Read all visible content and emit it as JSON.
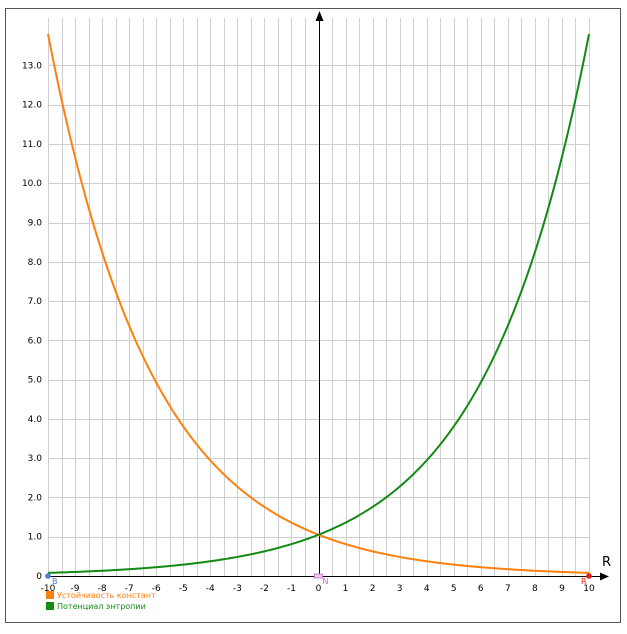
{
  "chart_data": {
    "type": "line",
    "xlabel": "R",
    "ylabel": "",
    "xlim": [
      -10,
      10
    ],
    "ylim": [
      0,
      13.8
    ],
    "grid": true,
    "x_ticks": [
      "-10",
      "-9",
      "-8",
      "-7",
      "-6",
      "-5",
      "-4",
      "-3",
      "-2",
      "-1",
      "0",
      "1",
      "2",
      "3",
      "4",
      "5",
      "6",
      "7",
      "8",
      "9",
      "10"
    ],
    "y_ticks": [
      "0",
      "1.0",
      "2.0",
      "3.0",
      "4.0",
      "5.0",
      "6.0",
      "7.0",
      "8.0",
      "9.0",
      "10.0",
      "11.0",
      "12.0",
      "13.0"
    ],
    "series": [
      {
        "name": "Устойчивость констант",
        "color": "#ff7f0e",
        "x": [
          -10,
          -9,
          -8,
          -7,
          -6,
          -5,
          -4,
          -3,
          -2,
          -1,
          0,
          1,
          2,
          3,
          4,
          5,
          6,
          7,
          8,
          9,
          10
        ],
        "y": [
          13.8,
          10.66,
          8.22,
          6.36,
          4.92,
          3.8,
          2.93,
          2.27,
          1.75,
          1.35,
          1.04,
          0.81,
          0.62,
          0.48,
          0.37,
          0.29,
          0.22,
          0.17,
          0.13,
          0.1,
          0.08
        ]
      },
      {
        "name": "Потенциал энтропии",
        "color": "#138a13",
        "x": [
          -10,
          -9,
          -8,
          -7,
          -6,
          -5,
          -4,
          -3,
          -2,
          -1,
          0,
          1,
          2,
          3,
          4,
          5,
          6,
          7,
          8,
          9,
          10
        ],
        "y": [
          0.08,
          0.1,
          0.13,
          0.17,
          0.22,
          0.29,
          0.37,
          0.48,
          0.62,
          0.81,
          1.04,
          1.35,
          1.75,
          2.27,
          2.93,
          3.8,
          4.92,
          6.36,
          8.22,
          10.66,
          13.8
        ]
      }
    ],
    "points": [
      {
        "label": "B",
        "x": -10,
        "y": 0,
        "color": "#4a7fd4"
      },
      {
        "label": "N",
        "x": 0,
        "y": 0,
        "color": "#cc66cc"
      },
      {
        "label": "R",
        "x": 10,
        "y": 0,
        "color": "#e02020"
      }
    ],
    "legend_position": "bottom-left"
  }
}
